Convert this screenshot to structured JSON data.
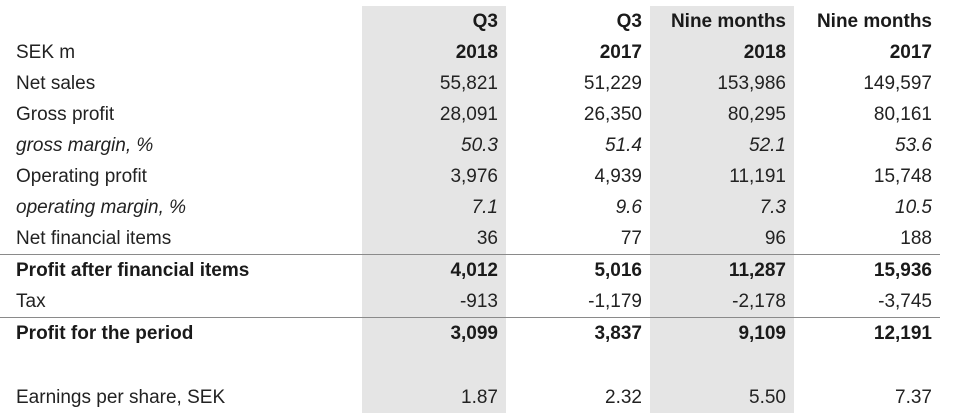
{
  "table": {
    "header_row1": [
      "",
      "Q3",
      "Q3",
      "Nine months",
      "Nine months"
    ],
    "header_row2": [
      "SEK m",
      "2018",
      "2017",
      "2018",
      "2017"
    ],
    "rows": [
      {
        "label": "Net sales",
        "values": [
          "55,821",
          "51,229",
          "153,986",
          "149,597"
        ]
      },
      {
        "label": "Gross profit",
        "values": [
          "28,091",
          "26,350",
          "80,295",
          "80,161"
        ]
      },
      {
        "label": "gross margin, %",
        "values": [
          "50.3",
          "51.4",
          "52.1",
          "53.6"
        ]
      },
      {
        "label": "Operating profit",
        "values": [
          "3,976",
          "4,939",
          "11,191",
          "15,748"
        ]
      },
      {
        "label": "operating margin, %",
        "values": [
          "7.1",
          "9.6",
          "7.3",
          "10.5"
        ]
      },
      {
        "label": "Net financial items",
        "values": [
          "36",
          "77",
          "96",
          "188"
        ]
      },
      {
        "label": "Profit after financial items",
        "values": [
          "4,012",
          "5,016",
          "11,287",
          "15,936"
        ]
      },
      {
        "label": "Tax",
        "values": [
          "-913",
          "-1,179",
          "-2,178",
          "-3,745"
        ]
      },
      {
        "label": "Profit for the period",
        "values": [
          "3,099",
          "3,837",
          "9,109",
          "12,191"
        ]
      },
      {
        "label": "Earnings per share, SEK",
        "values": [
          "1.87",
          "2.32",
          "5.50",
          "7.37"
        ]
      }
    ]
  }
}
